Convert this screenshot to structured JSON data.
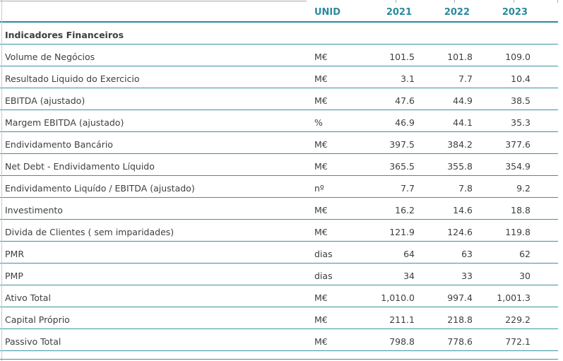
{
  "chart_data": {
    "type": "table",
    "section_title": "Indicadores Financeiros",
    "header": {
      "unit_label": "UNID",
      "years": [
        "2021",
        "2022",
        "2023"
      ]
    },
    "rows": [
      {
        "label": "Volume de Negócios",
        "unit": "M€",
        "values": [
          "101.5",
          "101.8",
          "109.0"
        ]
      },
      {
        "label": "Resultado Liquido do Exercicio",
        "unit": "M€",
        "values": [
          "3.1",
          "7.7",
          "10.4"
        ]
      },
      {
        "label": "EBITDA (ajustado)",
        "unit": "M€",
        "values": [
          "47.6",
          "44.9",
          "38.5"
        ]
      },
      {
        "label": "Margem EBITDA (ajustado)",
        "unit": "%",
        "values": [
          "46.9",
          "44.1",
          "35.3"
        ]
      },
      {
        "label": "Endividamento Bancário",
        "unit": "M€",
        "values": [
          "397.5",
          "384.2",
          "377.6"
        ]
      },
      {
        "label": "Net Debt - Endividamento Líquido",
        "unit": "M€",
        "values": [
          "365.5",
          "355.8",
          "354.9"
        ]
      },
      {
        "label": "Endividamento Liquído / EBITDA (ajustado)",
        "unit": "nº",
        "values": [
          "7.7",
          "7.8",
          "9.2"
        ]
      },
      {
        "label": "Investimento",
        "unit": "M€",
        "values": [
          "16.2",
          "14.6",
          "18.8"
        ]
      },
      {
        "label": "Divida de Clientes ( sem imparidades)",
        "unit": "M€",
        "values": [
          "121.9",
          "124.6",
          "119.8"
        ]
      },
      {
        "label": "PMR",
        "unit": "dias",
        "values": [
          "64",
          "63",
          "62"
        ]
      },
      {
        "label": "PMP",
        "unit": "dias",
        "values": [
          "34",
          "33",
          "30"
        ]
      },
      {
        "label": "Ativo Total",
        "unit": "M€",
        "values": [
          "1,010.0",
          "997.4",
          "1,001.3"
        ]
      },
      {
        "label": "Capital Próprio",
        "unit": "M€",
        "values": [
          "211.1",
          "218.8",
          "229.2"
        ]
      },
      {
        "label": "Passivo Total",
        "unit": "M€",
        "values": [
          "798.8",
          "778.6",
          "772.1"
        ]
      }
    ],
    "layout": {
      "grid": "horizontal rules only",
      "legend": "none"
    }
  },
  "colors": {
    "accent_teal": "#2A8A9C",
    "row_line_teal": "#3A93A3",
    "body_text": "#3E3E3E",
    "grid_gray": "#ABABAB"
  }
}
